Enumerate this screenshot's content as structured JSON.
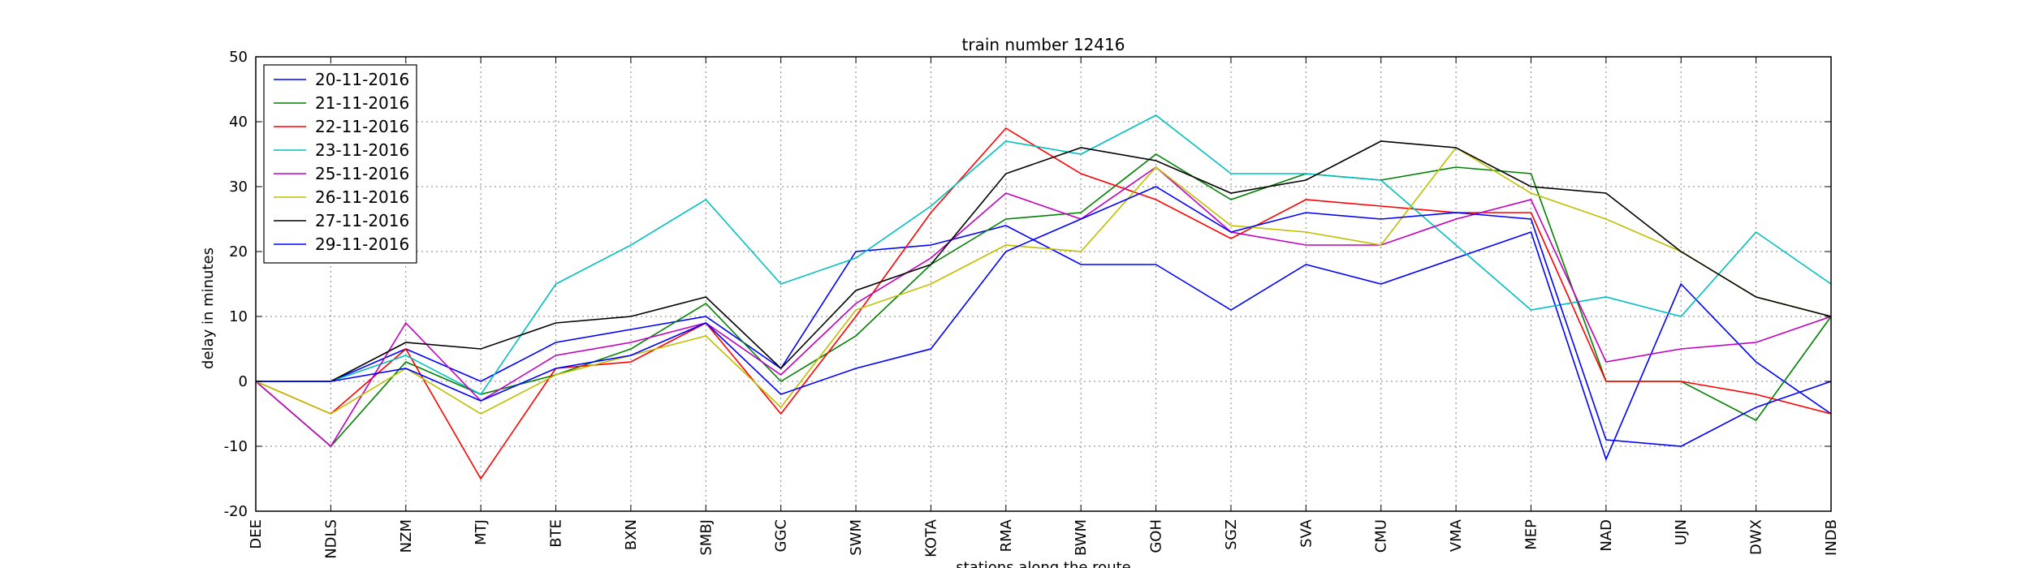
{
  "chart_data": {
    "type": "line",
    "title": "train number 12416",
    "xlabel": "stations along the route",
    "ylabel": "delay in minutes",
    "ylim": [
      -20,
      50
    ],
    "yticks": [
      -20,
      -10,
      0,
      10,
      20,
      30,
      40,
      50
    ],
    "grid": true,
    "legend_position": "top-left",
    "categories": [
      "DEE",
      "NDLS",
      "NZM",
      "MTJ",
      "BTE",
      "BXN",
      "SMBJ",
      "GGC",
      "SWM",
      "KOTA",
      "RMA",
      "BWM",
      "GOH",
      "SGZ",
      "SVA",
      "CMU",
      "VMA",
      "MEP",
      "NAD",
      "UJN",
      "DWX",
      "INDB"
    ],
    "series": [
      {
        "name": "20-11-2016",
        "color": "#0000ff",
        "values": [
          0,
          0,
          5,
          0,
          6,
          8,
          10,
          2,
          20,
          21,
          24,
          18,
          18,
          11,
          18,
          15,
          19,
          23,
          -12,
          15,
          3,
          -5
        ]
      },
      {
        "name": "21-11-2016",
        "color": "#008000",
        "values": [
          0,
          -10,
          3,
          -2,
          1,
          5,
          12,
          0,
          7,
          18,
          25,
          26,
          35,
          28,
          32,
          31,
          33,
          32,
          0,
          0,
          -6,
          10
        ]
      },
      {
        "name": "22-11-2016",
        "color": "#ff0000",
        "values": [
          0,
          -5,
          5,
          -15,
          2,
          3,
          9,
          -5,
          10,
          26,
          39,
          32,
          28,
          22,
          28,
          27,
          26,
          26,
          0,
          0,
          -2,
          -5
        ]
      },
      {
        "name": "23-11-2016",
        "color": "#00bfbf",
        "values": [
          0,
          0,
          4,
          -2,
          15,
          21,
          28,
          15,
          19,
          27,
          37,
          35,
          41,
          32,
          32,
          31,
          21,
          11,
          13,
          10,
          23,
          15
        ]
      },
      {
        "name": "25-11-2016",
        "color": "#bf00bf",
        "values": [
          0,
          -10,
          9,
          -3,
          4,
          6,
          9,
          1,
          12,
          19,
          29,
          25,
          33,
          23,
          21,
          21,
          25,
          28,
          3,
          5,
          6,
          10
        ]
      },
      {
        "name": "26-11-2016",
        "color": "#bfbf00",
        "values": [
          0,
          -5,
          2,
          -5,
          1,
          4,
          7,
          -4,
          11,
          15,
          21,
          20,
          33,
          24,
          23,
          21,
          36,
          29,
          25,
          20,
          13,
          10
        ]
      },
      {
        "name": "27-11-2016",
        "color": "#000000",
        "values": [
          0,
          0,
          6,
          5,
          9,
          10,
          13,
          2,
          14,
          18,
          32,
          36,
          34,
          29,
          31,
          37,
          36,
          30,
          29,
          20,
          13,
          10
        ]
      },
      {
        "name": "29-11-2016",
        "color": "#0000ff",
        "values": [
          0,
          0,
          2,
          -3,
          2,
          4,
          9,
          -2,
          2,
          5,
          20,
          25,
          30,
          23,
          26,
          25,
          26,
          25,
          -9,
          -10,
          -4,
          0
        ]
      }
    ]
  }
}
